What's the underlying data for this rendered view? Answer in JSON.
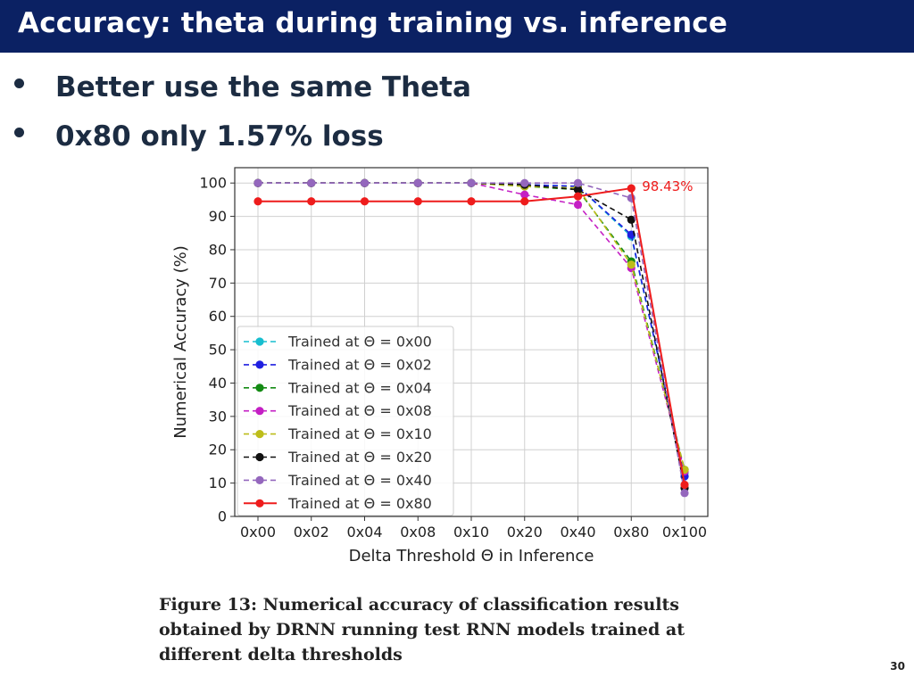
{
  "slide": {
    "title": "Accuracy: theta during training vs. inference",
    "bullets": [
      "Better use the same Theta",
      "0x80 only 1.57% loss"
    ],
    "caption": "Figure 13: Numerical accuracy of classification results obtained by DRNN running test RNN models trained at different delta thresholds",
    "page_number": "30"
  },
  "chart_data": {
    "type": "line",
    "title": "",
    "xlabel": "Delta Threshold Θ in Inference",
    "ylabel": "Numerical Accuracy (%)",
    "categories": [
      "0x00",
      "0x02",
      "0x04",
      "0x08",
      "0x10",
      "0x20",
      "0x40",
      "0x80",
      "0x100"
    ],
    "ylim": [
      0,
      100
    ],
    "yticks": [
      0,
      10,
      20,
      30,
      40,
      50,
      60,
      70,
      80,
      90,
      100
    ],
    "grid": true,
    "legend_position": "center-left",
    "annotation": {
      "text": "98.43%",
      "category": "0x80",
      "value": 98.43,
      "color": "#ee1c1c"
    },
    "series": [
      {
        "name": "Trained at Θ = 0x00",
        "color": "#17becf",
        "dashed": true,
        "values": [
          100,
          100,
          100,
          100,
          100,
          99.5,
          99,
          84,
          13
        ]
      },
      {
        "name": "Trained at Θ = 0x02",
        "color": "#1f1fe0",
        "dashed": true,
        "values": [
          100,
          100,
          100,
          100,
          100,
          99.5,
          99,
          84.5,
          12
        ]
      },
      {
        "name": "Trained at Θ = 0x04",
        "color": "#138a13",
        "dashed": true,
        "values": [
          100,
          100,
          100,
          100,
          100,
          99,
          98,
          76.5,
          14
        ]
      },
      {
        "name": "Trained at Θ = 0x08",
        "color": "#c41fc4",
        "dashed": true,
        "values": [
          100,
          100,
          100,
          100,
          100,
          96.5,
          93.5,
          74.5,
          13.5
        ]
      },
      {
        "name": "Trained at Θ = 0x10",
        "color": "#bdbd1a",
        "dashed": true,
        "values": [
          100,
          100,
          100,
          100,
          100,
          99,
          98.5,
          75.5,
          14
        ]
      },
      {
        "name": "Trained at Θ = 0x20",
        "color": "#111111",
        "dashed": true,
        "values": [
          100,
          100,
          100,
          100,
          100,
          99.5,
          98,
          89,
          8.5
        ]
      },
      {
        "name": "Trained at Θ = 0x40",
        "color": "#9467bd",
        "dashed": true,
        "values": [
          100,
          100,
          100,
          100,
          100,
          100,
          100,
          95.5,
          7
        ]
      },
      {
        "name": "Trained at Θ = 0x80",
        "color": "#ee1c1c",
        "dashed": false,
        "values": [
          94.5,
          94.5,
          94.5,
          94.5,
          94.5,
          94.5,
          96,
          98.43,
          9.5
        ]
      }
    ]
  }
}
